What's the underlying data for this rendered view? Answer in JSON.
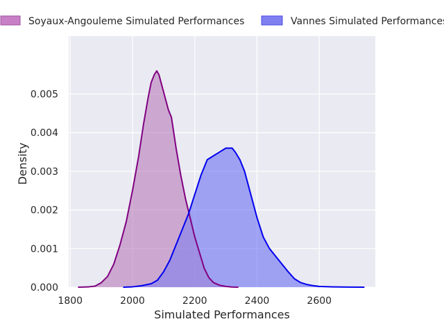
{
  "chart_data": {
    "type": "area",
    "xlabel": "Simulated Performances",
    "ylabel": "Density",
    "xlim": [
      1795,
      2780
    ],
    "ylim": [
      0,
      0.0065
    ],
    "xticks": [
      1800,
      2000,
      2200,
      2400,
      2600
    ],
    "yticks": [
      0.0,
      0.001,
      0.002,
      0.003,
      0.004,
      0.005
    ],
    "ytick_labels": [
      "0.000",
      "0.001",
      "0.002",
      "0.003",
      "0.004",
      "0.005"
    ],
    "grid": true,
    "legend_position": "top, outside plot, two columns",
    "series": [
      {
        "name": "Soyaux-Angouleme Simulated Performances",
        "color": "#800080",
        "fill": "#c8a0cc",
        "x": [
          1825,
          1860,
          1880,
          1900,
          1920,
          1940,
          1960,
          1980,
          2000,
          2020,
          2035,
          2050,
          2060,
          2070,
          2078,
          2085,
          2095,
          2105,
          2115,
          2125,
          2140,
          2155,
          2170,
          2185,
          2200,
          2215,
          2230,
          2245,
          2260,
          2280,
          2300,
          2320,
          2340
        ],
        "y": [
          0.0,
          1e-05,
          3e-05,
          0.00012,
          0.00028,
          0.0006,
          0.0011,
          0.0017,
          0.0025,
          0.0034,
          0.0042,
          0.0049,
          0.0053,
          0.0055,
          0.0056,
          0.0055,
          0.0052,
          0.0049,
          0.0046,
          0.0044,
          0.0036,
          0.0029,
          0.0023,
          0.0018,
          0.0013,
          0.0009,
          0.0005,
          0.00025,
          0.00012,
          5e-05,
          2e-05,
          5e-06,
          0.0
        ]
      },
      {
        "name": "Vannes Simulated Performances",
        "color": "#0000ee",
        "fill": "#8a8ef5",
        "x": [
          1970,
          2000,
          2030,
          2060,
          2080,
          2100,
          2120,
          2140,
          2160,
          2180,
          2200,
          2220,
          2240,
          2260,
          2280,
          2300,
          2310,
          2320,
          2330,
          2345,
          2360,
          2380,
          2400,
          2420,
          2440,
          2460,
          2480,
          2500,
          2520,
          2540,
          2560,
          2580,
          2600,
          2640,
          2680,
          2720,
          2745
        ],
        "y": [
          0.0,
          1e-05,
          4e-05,
          9e-05,
          0.00018,
          0.0004,
          0.0007,
          0.0011,
          0.0015,
          0.0019,
          0.0024,
          0.0029,
          0.0033,
          0.0034,
          0.0035,
          0.0036,
          0.0036,
          0.0036,
          0.0035,
          0.0033,
          0.003,
          0.0024,
          0.0018,
          0.0013,
          0.001,
          0.0008,
          0.0006,
          0.0004,
          0.00022,
          0.00012,
          7e-05,
          4e-05,
          2e-05,
          1e-05,
          5e-06,
          2e-06,
          0.0
        ]
      }
    ]
  }
}
